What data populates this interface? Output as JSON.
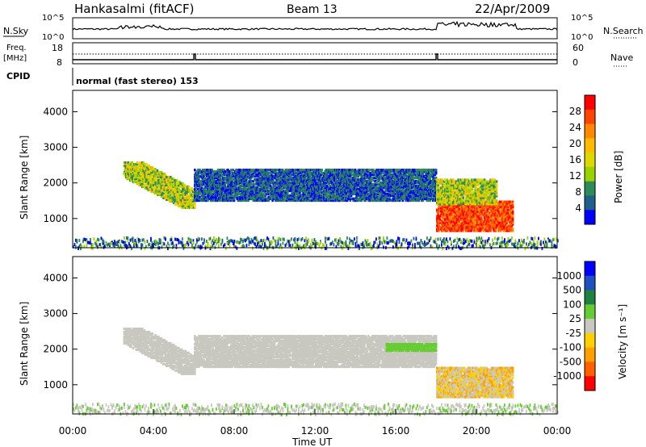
{
  "header": {
    "station": "Hankasalmi (fitACF)",
    "beam": "Beam 13",
    "date": "22/Apr/2009"
  },
  "top_panel": {
    "left_label": "N.Sky",
    "right_label": "N.Search",
    "left_ticks": [
      "10^5",
      "10^0"
    ],
    "right_ticks": [
      "10^5",
      "10^0"
    ]
  },
  "freq_panel": {
    "left_label": "Freq.",
    "left_unit": "[MHz]",
    "right_label": "Nave",
    "left_ticks": [
      "18",
      "8"
    ],
    "right_ticks": [
      "60",
      "0"
    ]
  },
  "cpid": {
    "label": "CPID",
    "mode": "normal (fast stereo) 153"
  },
  "chart_data": [
    {
      "type": "heatmap",
      "name": "power",
      "ylabel": "Slant Range [km]",
      "ylim": [
        180,
        4600
      ],
      "yticks": [
        1000,
        2000,
        3000,
        4000
      ],
      "colorbar": {
        "label": "Power [dB]",
        "ticks": [
          "28",
          "24",
          "20",
          "16",
          "12",
          "8",
          "4"
        ],
        "colors": [
          "#ff0000",
          "#ff4400",
          "#ff8800",
          "#ffbb00",
          "#dcd800",
          "#9ad200",
          "#2e8b57",
          "#1f5f8b",
          "#0000ff"
        ]
      },
      "blobs": [
        {
          "t0": 2.5,
          "t1": 6.0,
          "r0": 1300,
          "r1": 2600,
          "value": "mid"
        },
        {
          "t0": 6.0,
          "t1": 18.0,
          "r0": 1500,
          "r1": 2400,
          "value": "low"
        },
        {
          "t0": 18.0,
          "t1": 21.8,
          "r0": 650,
          "r1": 1500,
          "value": "high"
        },
        {
          "t0": 18.0,
          "t1": 21.0,
          "r0": 1400,
          "r1": 2100,
          "value": "mid"
        }
      ]
    },
    {
      "type": "heatmap",
      "name": "velocity",
      "ylabel": "Slant Range [km]",
      "ylim": [
        180,
        4600
      ],
      "yticks": [
        1000,
        2000,
        3000,
        4000
      ],
      "colorbar": {
        "label": "Velocity [m s⁻¹]",
        "ticks": [
          "1000",
          "500",
          "100",
          "25",
          "-25",
          "-100",
          "-500",
          "-1000"
        ],
        "colors": [
          "#0000ff",
          "#2050c0",
          "#208040",
          "#66cc33",
          "#c8c8c0",
          "#ffd000",
          "#ffa000",
          "#ff6000",
          "#ff0000"
        ]
      },
      "blobs": [
        {
          "t0": 2.5,
          "t1": 6.0,
          "r0": 1300,
          "r1": 2600,
          "value": "ground"
        },
        {
          "t0": 6.0,
          "t1": 18.0,
          "r0": 1500,
          "r1": 2400,
          "value": "ground"
        },
        {
          "t0": 18.0,
          "t1": 21.8,
          "r0": 650,
          "r1": 1500,
          "value": "negative"
        },
        {
          "t0": 15.5,
          "t1": 18.0,
          "r0": 1950,
          "r1": 2150,
          "value": "small-positive"
        }
      ]
    }
  ],
  "x_axis": {
    "label": "Time UT",
    "ticks": [
      "00:00",
      "04:00",
      "08:00",
      "12:00",
      "16:00",
      "20:00",
      "00:00"
    ],
    "range_hours": [
      0,
      24
    ]
  }
}
